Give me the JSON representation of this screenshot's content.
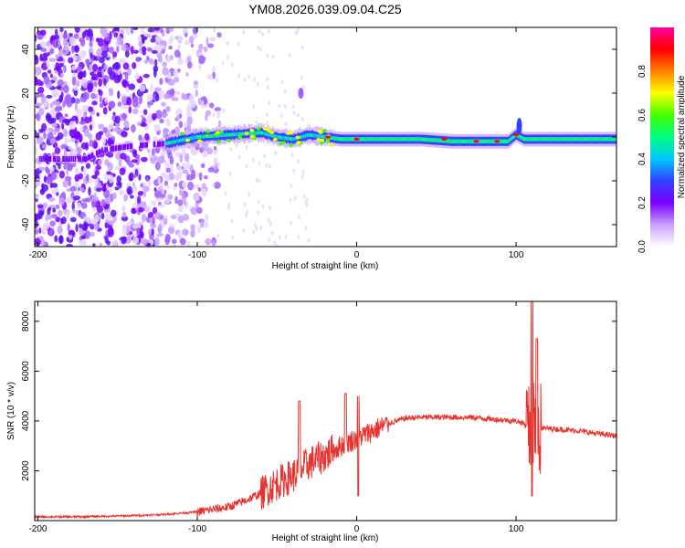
{
  "page_title": "YM08.2026.039.09.04.C25",
  "chart_data": [
    {
      "type": "heatmap",
      "title": "YM08.2026.039.09.04.C25",
      "xlabel": "Height of straight line (km)",
      "ylabel": "Frequency (Hz)",
      "xlim": [
        -202,
        163
      ],
      "ylim": [
        -50,
        50
      ],
      "xticks": [
        -200,
        -100,
        0,
        100
      ],
      "xtick_labels": [
        "-200",
        "-100",
        "0",
        "100"
      ],
      "yticks": [
        -40,
        -20,
        0,
        20,
        40
      ],
      "ytick_labels": [
        "-40",
        "-20",
        "0",
        "20",
        "40"
      ],
      "ridge": {
        "x": [
          -170,
          -160,
          -140,
          -120,
          -100,
          -80,
          -60,
          -50,
          -40,
          -30,
          -20,
          -10,
          0,
          20,
          40,
          60,
          80,
          90,
          95,
          100,
          105,
          120,
          140,
          163
        ],
        "frequency": [
          -10,
          -6,
          -4,
          -3,
          0,
          1,
          2,
          0,
          -1,
          1,
          0,
          -1,
          -1,
          -1,
          -1,
          -2,
          -2,
          -2,
          -2,
          1,
          -1,
          -1,
          -1,
          -1
        ]
      },
      "colorbar": {
        "label": "Normalized spectral amplitude",
        "range": [
          0,
          1
        ],
        "ticks": [
          0.0,
          0.2,
          0.4,
          0.6,
          0.8
        ],
        "tick_labels": [
          "0.0",
          "0.2",
          "0.4",
          "0.6",
          "0.8"
        ],
        "colors": [
          "#ffffff",
          "#c8a0ff",
          "#7a00ff",
          "#3040ff",
          "#00c8ff",
          "#00ff80",
          "#40ff00",
          "#ffff00",
          "#ff8000",
          "#ff0000",
          "#ff00a0"
        ]
      }
    },
    {
      "type": "line",
      "xlabel": "Height of straight line (km)",
      "ylabel": "SNR (10 * v/v)",
      "xlim": [
        -202,
        163
      ],
      "ylim": [
        0,
        8800
      ],
      "xticks": [
        -200,
        -100,
        0,
        100
      ],
      "xtick_labels": [
        "-200",
        "-100",
        "0",
        "100"
      ],
      "yticks": [
        2000,
        4000,
        6000,
        8000
      ],
      "ytick_labels": [
        "2000",
        "4000",
        "6000",
        "8000"
      ],
      "series": [
        {
          "name": "SNR",
          "color": "#e8322e",
          "x": [
            -202,
            -180,
            -160,
            -140,
            -120,
            -100,
            -90,
            -80,
            -70,
            -60,
            -50,
            -40,
            -30,
            -20,
            -10,
            0,
            10,
            20,
            30,
            40,
            50,
            60,
            70,
            80,
            90,
            100,
            105,
            108,
            110,
            112,
            115,
            120,
            130,
            140,
            150,
            163
          ],
          "values": [
            150,
            150,
            170,
            200,
            250,
            350,
            450,
            550,
            800,
            1100,
            1500,
            1800,
            2300,
            2600,
            3000,
            3300,
            3600,
            3900,
            4100,
            4150,
            4150,
            4150,
            4150,
            4100,
            4050,
            4000,
            3900,
            3600,
            3700,
            3800,
            3700,
            3700,
            3650,
            3600,
            3500,
            3400
          ],
          "spikes": [
            {
              "x": -36,
              "value": 4800
            },
            {
              "x": -7,
              "value": 5100
            },
            {
              "x": 1,
              "value": 5000
            },
            {
              "x": 110,
              "value": 8800
            },
            {
              "x": 113,
              "value": 7300
            }
          ],
          "dips": [
            {
              "x": 110,
              "value": 1000
            },
            {
              "x": 1,
              "value": 1000
            }
          ]
        }
      ]
    }
  ]
}
